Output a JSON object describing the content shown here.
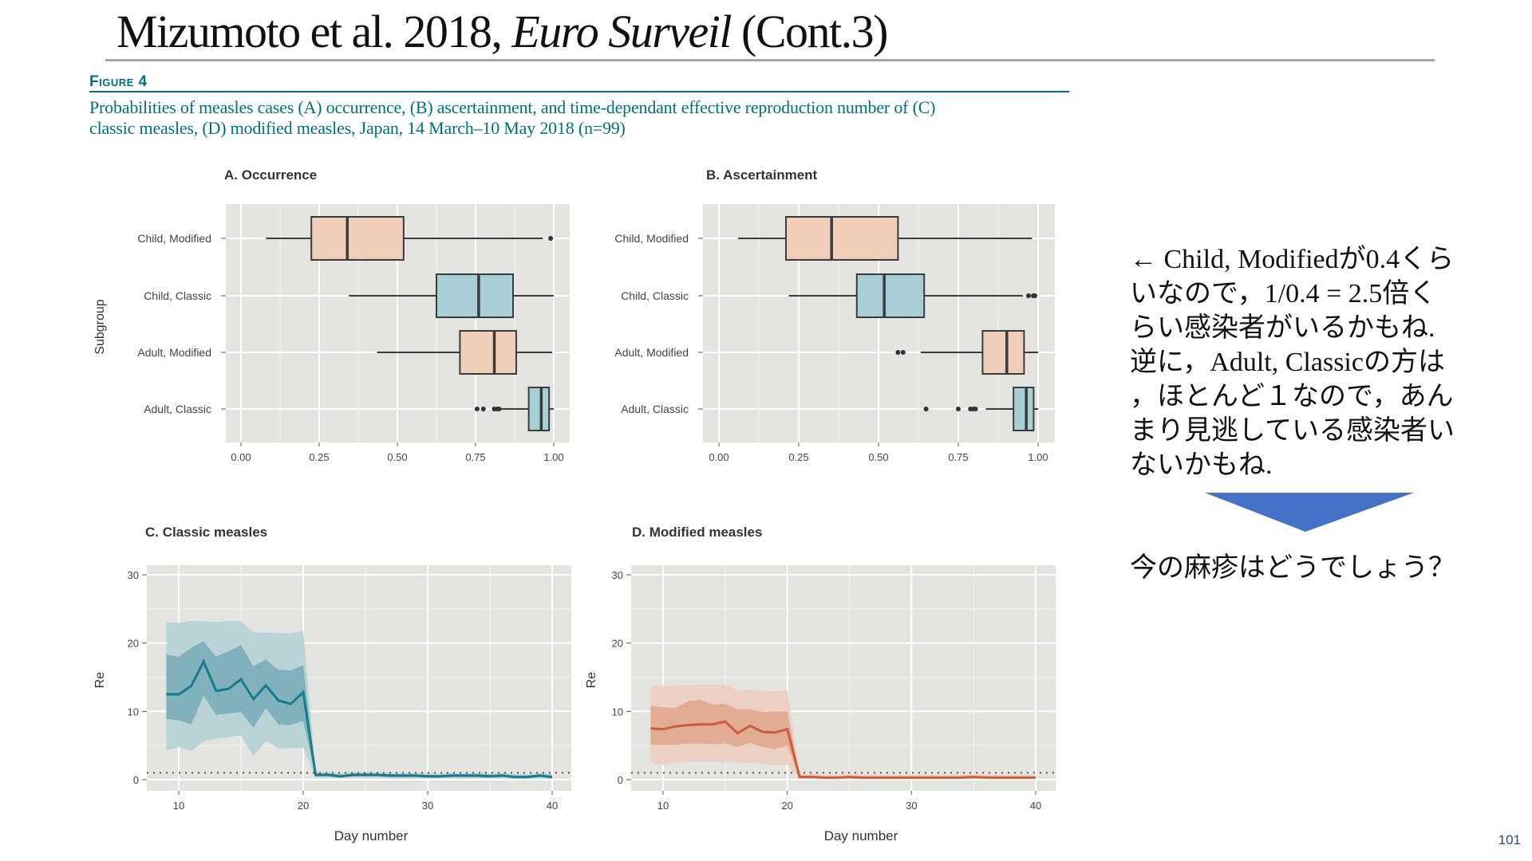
{
  "header": {
    "title_main": "Mizumoto et al. 2018, ",
    "title_italic": "Euro Surveil",
    "title_suffix": " (Cont.3)"
  },
  "figure": {
    "label": "Figure 4",
    "caption_line1": "Probabilities of measles cases (A) occurrence, (B) ascertainment, and time-dependant effective reproduction number of (C)",
    "caption_line2": "classic measles, (D) modified measles, Japan, 14 March–10 May 2018 (n=99)"
  },
  "notes": {
    "lines": [
      "← Child, Modifiedが0.4くら",
      "いなので，1/0.4 = 2.5倍く",
      "らい感染者がいるかもね.",
      "逆に，Adult, Classicの方は",
      "，ほとんど１なので，あん",
      "まり見逃している感染者い",
      "ないかもね."
    ],
    "question": "今の麻疹はどうでしょう？",
    "arrow_color": "#4472c4"
  },
  "page_number": "101",
  "colors": {
    "panel_bg": "#e3e3df",
    "peach": "#f0cdb9",
    "blue": "#a9cfd6",
    "teal": "#177b8c",
    "orange": "#cf5b3b",
    "caption": "#00707f"
  },
  "chart_data": [
    {
      "type": "boxplot",
      "title": "A. Occurrence",
      "ylabel": "Subgroup",
      "xlabel": "",
      "xlim": [
        0,
        1
      ],
      "xticks": [
        0,
        0.25,
        0.5,
        0.75,
        1
      ],
      "xtick_labels": [
        "0.00",
        "0.25",
        "0.50",
        "0.75",
        "1.00"
      ],
      "boxes": [
        {
          "name": "Child, Modified",
          "fill": "peach",
          "min": 0.08,
          "q1": 0.225,
          "median": 0.34,
          "q3": 0.52,
          "max": 0.965,
          "outliers": [
            0.99
          ]
        },
        {
          "name": "Child, Classic",
          "fill": "blue",
          "min": 0.345,
          "q1": 0.625,
          "median": 0.76,
          "q3": 0.87,
          "max": 1.0,
          "outliers": []
        },
        {
          "name": "Adult, Modified",
          "fill": "peach",
          "min": 0.435,
          "q1": 0.7,
          "median": 0.81,
          "q3": 0.88,
          "max": 0.995,
          "outliers": []
        },
        {
          "name": "Adult, Classic",
          "fill": "blue",
          "min": 0.83,
          "q1": 0.92,
          "median": 0.96,
          "q3": 0.985,
          "max": 1.0,
          "outliers": [
            0.755,
            0.775,
            0.81,
            0.82,
            0.825
          ]
        }
      ]
    },
    {
      "type": "boxplot",
      "title": "B. Ascertainment",
      "ylabel": "",
      "xlabel": "",
      "xlim": [
        0,
        1
      ],
      "xticks": [
        0,
        0.25,
        0.5,
        0.75,
        1
      ],
      "xtick_labels": [
        "0.00",
        "0.25",
        "0.50",
        "0.75",
        "1.00"
      ],
      "boxes": [
        {
          "name": "Child, Modified",
          "fill": "peach",
          "min": 0.06,
          "q1": 0.21,
          "median": 0.353,
          "q3": 0.561,
          "max": 0.981,
          "outliers": []
        },
        {
          "name": "Child, Classic",
          "fill": "blue",
          "min": 0.219,
          "q1": 0.432,
          "median": 0.518,
          "q3": 0.643,
          "max": 0.952,
          "outliers": [
            0.97,
            0.985,
            0.99
          ]
        },
        {
          "name": "Adult, Modified",
          "fill": "peach",
          "min": 0.632,
          "q1": 0.826,
          "median": 0.902,
          "q3": 0.956,
          "max": 1.0,
          "outliers": [
            0.561,
            0.577
          ]
        },
        {
          "name": "Adult, Classic",
          "fill": "blue",
          "min": 0.836,
          "q1": 0.923,
          "median": 0.963,
          "q3": 0.986,
          "max": 1.0,
          "outliers": [
            0.649,
            0.75,
            0.788,
            0.797,
            0.804
          ]
        }
      ]
    },
    {
      "type": "line",
      "title": "C. Classic measles",
      "xlabel": "Day number",
      "ylabel": "Re",
      "xlim": [
        7.5,
        41.5
      ],
      "ylim": [
        -1.5,
        31.5
      ],
      "xticks": [
        10,
        20,
        30,
        40
      ],
      "yticks": [
        0,
        10,
        20,
        30
      ],
      "reference_line": 1,
      "color": "teal",
      "x": [
        9,
        10,
        11,
        12,
        13,
        14,
        15,
        16,
        17,
        18,
        19,
        20,
        21,
        22,
        23,
        24,
        25,
        26,
        27,
        28,
        29,
        30,
        31,
        32,
        33,
        34,
        35,
        36,
        37,
        38,
        39,
        40
      ],
      "median": [
        12.5,
        12.5,
        13.7,
        17.3,
        13.0,
        13.3,
        14.7,
        11.8,
        13.8,
        11.6,
        11.1,
        12.8,
        0.7,
        0.7,
        0.5,
        0.7,
        0.7,
        0.7,
        0.6,
        0.6,
        0.6,
        0.5,
        0.5,
        0.6,
        0.6,
        0.6,
        0.5,
        0.6,
        0.4,
        0.4,
        0.6,
        0.4
      ],
      "ci50_low": [
        8.9,
        8.7,
        8.1,
        12.3,
        9.5,
        9.7,
        9.9,
        7.6,
        10.5,
        8.1,
        8.0,
        8.6,
        0.5,
        0.5,
        0.3,
        0.5,
        0.5,
        0.5,
        0.4,
        0.4,
        0.4,
        0.3,
        0.3,
        0.4,
        0.4,
        0.4,
        0.3,
        0.4,
        0.3,
        0.3,
        0.4,
        0.3
      ],
      "ci50_high": [
        18.3,
        18.0,
        19.3,
        20.3,
        18.0,
        18.8,
        19.7,
        16.6,
        17.6,
        16.1,
        16.0,
        16.8,
        0.9,
        0.9,
        0.7,
        0.9,
        0.9,
        0.9,
        0.8,
        0.8,
        0.8,
        0.7,
        0.7,
        0.8,
        0.8,
        0.8,
        0.7,
        0.8,
        0.6,
        0.6,
        0.8,
        0.6
      ],
      "ci95_low": [
        4.3,
        4.8,
        4.2,
        5.6,
        6.0,
        6.2,
        6.5,
        3.5,
        5.7,
        4.6,
        4.6,
        4.7,
        0.3,
        0.3,
        0.2,
        0.3,
        0.3,
        0.3,
        0.2,
        0.2,
        0.2,
        0.2,
        0.2,
        0.2,
        0.2,
        0.2,
        0.2,
        0.2,
        0.1,
        0.1,
        0.2,
        0.1
      ],
      "ci95_high": [
        23.0,
        23.0,
        23.2,
        23.2,
        23.1,
        23.2,
        23.2,
        21.6,
        21.5,
        21.5,
        21.4,
        21.8,
        1.1,
        1.1,
        0.9,
        1.1,
        1.1,
        1.1,
        1.0,
        1.0,
        1.0,
        0.9,
        0.9,
        1.0,
        1.0,
        1.0,
        0.9,
        1.0,
        0.8,
        0.8,
        1.0,
        0.8
      ]
    },
    {
      "type": "line",
      "title": "D. Modified measles",
      "xlabel": "Day number",
      "ylabel": "Re",
      "xlim": [
        7.5,
        41.5
      ],
      "ylim": [
        -1.5,
        31.5
      ],
      "xticks": [
        10,
        20,
        30,
        40
      ],
      "yticks": [
        0,
        10,
        20,
        30
      ],
      "reference_line": 1,
      "color": "orange",
      "x": [
        9,
        10,
        11,
        12,
        13,
        14,
        15,
        16,
        17,
        18,
        19,
        20,
        21,
        22,
        23,
        24,
        25,
        26,
        27,
        28,
        29,
        30,
        31,
        32,
        33,
        34,
        35,
        36,
        37,
        38,
        39,
        40
      ],
      "median": [
        7.5,
        7.4,
        7.8,
        8.0,
        8.1,
        8.1,
        8.5,
        6.8,
        7.9,
        7.0,
        6.9,
        7.4,
        0.4,
        0.4,
        0.3,
        0.3,
        0.4,
        0.3,
        0.3,
        0.3,
        0.3,
        0.3,
        0.3,
        0.3,
        0.3,
        0.3,
        0.4,
        0.3,
        0.3,
        0.3,
        0.3,
        0.3
      ],
      "ci50_low": [
        5.1,
        5.1,
        5.1,
        5.3,
        5.3,
        5.2,
        5.3,
        4.8,
        5.4,
        4.8,
        4.5,
        5.0,
        0.3,
        0.3,
        0.2,
        0.2,
        0.3,
        0.2,
        0.2,
        0.2,
        0.2,
        0.2,
        0.2,
        0.2,
        0.2,
        0.2,
        0.3,
        0.2,
        0.2,
        0.2,
        0.2,
        0.2
      ],
      "ci50_high": [
        10.8,
        10.6,
        10.5,
        11.5,
        11.7,
        11.0,
        11.1,
        10.3,
        10.3,
        9.9,
        10.0,
        10.0,
        0.5,
        0.5,
        0.4,
        0.4,
        0.5,
        0.4,
        0.4,
        0.4,
        0.4,
        0.4,
        0.4,
        0.4,
        0.4,
        0.4,
        0.5,
        0.4,
        0.4,
        0.4,
        0.4,
        0.4
      ],
      "ci95_low": [
        2.5,
        2.2,
        2.5,
        2.6,
        2.6,
        2.6,
        2.6,
        2.5,
        2.4,
        2.3,
        2.2,
        2.2,
        0.1,
        0.1,
        0.1,
        0.1,
        0.1,
        0.1,
        0.1,
        0.1,
        0.1,
        0.1,
        0.1,
        0.1,
        0.1,
        0.1,
        0.1,
        0.1,
        0.1,
        0.1,
        0.1,
        0.1
      ],
      "ci95_high": [
        13.8,
        13.8,
        13.8,
        13.9,
        13.9,
        13.9,
        13.9,
        13.1,
        13.1,
        13.0,
        12.9,
        13.1,
        0.8,
        0.8,
        0.7,
        0.7,
        0.8,
        0.7,
        0.7,
        0.7,
        0.7,
        0.7,
        0.7,
        0.7,
        0.7,
        0.7,
        0.8,
        0.7,
        0.7,
        0.7,
        0.7,
        0.7
      ]
    }
  ]
}
